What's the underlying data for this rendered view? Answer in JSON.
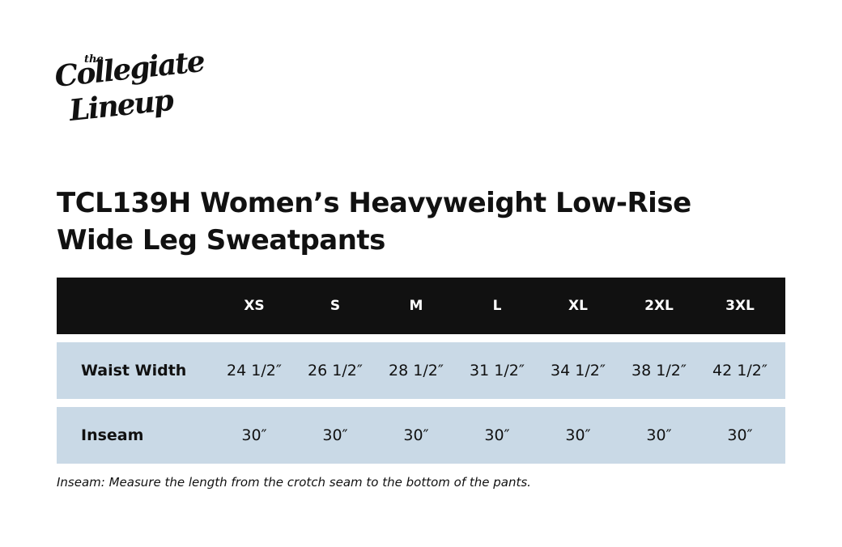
{
  "logo": {
    "top": "the",
    "line1": "Collegiate",
    "line2": "Lineup"
  },
  "title_lines": [
    "TCL139H Women’s Heavyweight Low-Rise",
    "Wide Leg Sweatpants"
  ],
  "table": {
    "columns": [
      "XS",
      "S",
      "M",
      "L",
      "XL",
      "2XL",
      "3XL"
    ],
    "rows": [
      {
        "label": "Waist Width",
        "cells": [
          "24 1/2″",
          "26 1/2″",
          "28 1/2″",
          "31 1/2″",
          "34 1/2″",
          "38 1/2″",
          "42 1/2″"
        ]
      },
      {
        "label": "Inseam",
        "cells": [
          "30″",
          "30″",
          "30″",
          "30″",
          "30″",
          "30″",
          "30″"
        ]
      }
    ]
  },
  "footnote": "Inseam: Measure the length from the crotch seam to the bottom of the pants."
}
